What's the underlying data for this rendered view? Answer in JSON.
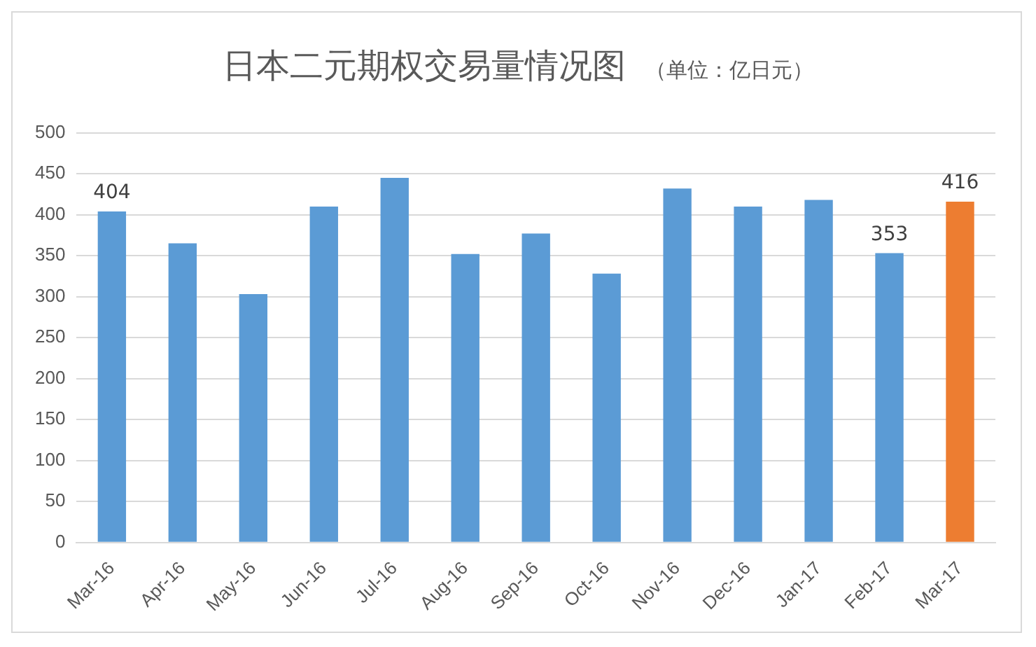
{
  "chart_data": {
    "type": "bar",
    "title": "日本二元期权交易量情况图",
    "subtitle": "（单位：亿日元）",
    "categories": [
      "Mar-16",
      "Apr-16",
      "May-16",
      "Jun-16",
      "Jul-16",
      "Aug-16",
      "Sep-16",
      "Oct-16",
      "Nov-16",
      "Dec-16",
      "Jan-17",
      "Feb-17",
      "Mar-17"
    ],
    "values": [
      404,
      365,
      303,
      410,
      445,
      352,
      377,
      328,
      432,
      410,
      418,
      353,
      416
    ],
    "value_labels": [
      "404",
      null,
      null,
      null,
      null,
      null,
      null,
      null,
      null,
      null,
      null,
      "353",
      "416"
    ],
    "colors": [
      "#5b9bd5",
      "#5b9bd5",
      "#5b9bd5",
      "#5b9bd5",
      "#5b9bd5",
      "#5b9bd5",
      "#5b9bd5",
      "#5b9bd5",
      "#5b9bd5",
      "#5b9bd5",
      "#5b9bd5",
      "#5b9bd5",
      "#ed7d31"
    ],
    "ylim": [
      0,
      500
    ],
    "yticks": [
      0,
      50,
      100,
      150,
      200,
      250,
      300,
      350,
      400,
      450,
      500
    ],
    "grid": "y",
    "legend": false
  }
}
